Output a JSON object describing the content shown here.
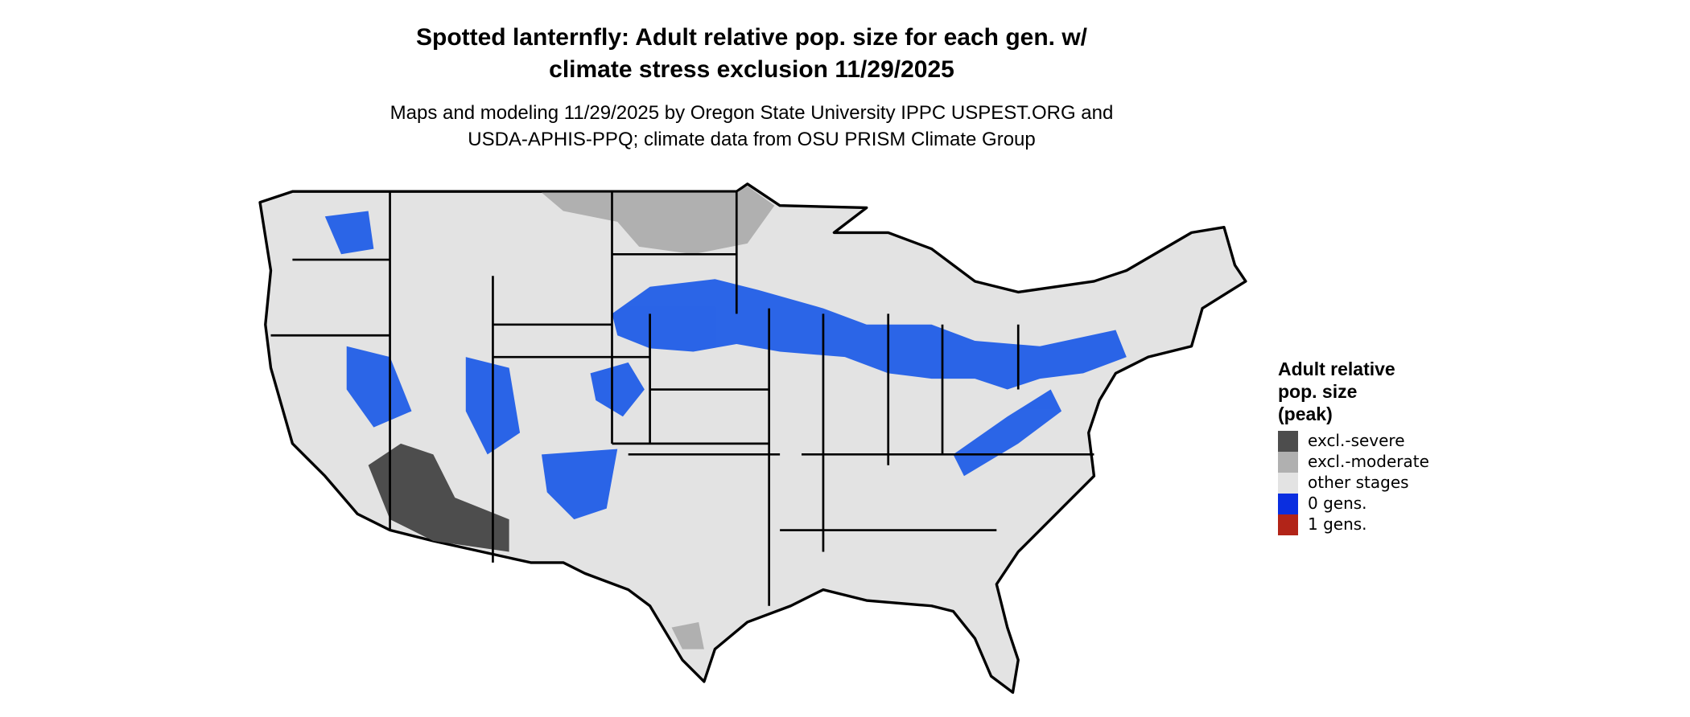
{
  "title": [
    "Spotted lanternfly: Adult relative pop. size for each gen. w/",
    "climate stress exclusion 11/29/2025"
  ],
  "subtitle": [
    "Maps and modeling 11/29/2025 by Oregon State University IPPC USPEST.ORG and",
    "USDA-APHIS-PPQ; climate data from OSU PRISM Climate Group"
  ],
  "legend": {
    "title": [
      "Adult relative",
      "pop. size",
      "(peak)"
    ],
    "items": [
      {
        "label": "excl.-severe",
        "color": "#4d4d4d"
      },
      {
        "label": "excl.-moderate",
        "color": "#b0b0b0"
      },
      {
        "label": "other stages",
        "color": "#e3e3e3"
      },
      {
        "label": "0 gens.",
        "color": "#0a2ee0"
      },
      {
        "label": "1 gens.",
        "color": "#b22418"
      }
    ]
  }
}
